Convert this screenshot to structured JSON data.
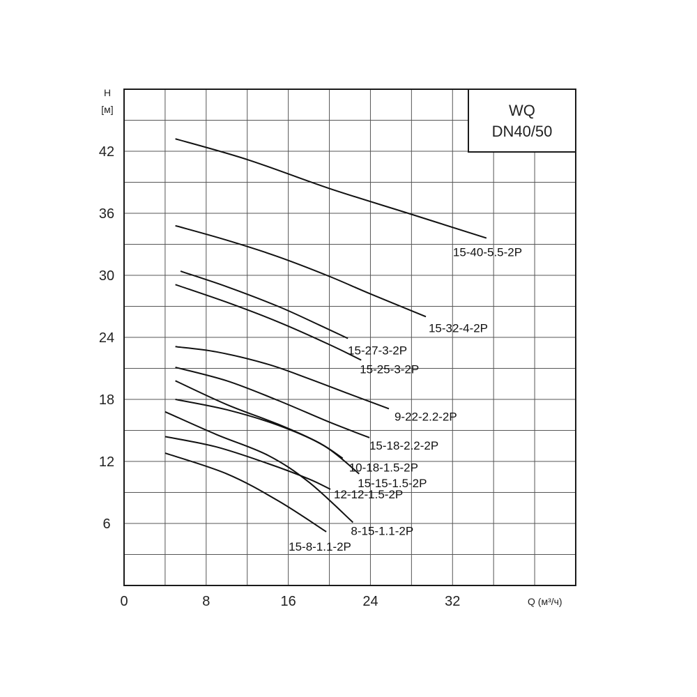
{
  "chart_data": {
    "type": "line",
    "title_lines": [
      "WQ",
      "DN40/50"
    ],
    "ylabel_lines": [
      "H",
      "[м]"
    ],
    "xlabel": "Q (м³/ч)",
    "xlim": [
      0,
      44
    ],
    "ylim": [
      0,
      48
    ],
    "x_ticks": [
      0,
      8,
      16,
      24,
      32
    ],
    "y_ticks": [
      6,
      12,
      18,
      24,
      30,
      36,
      42
    ],
    "x_grid": [
      0,
      4,
      8,
      12,
      16,
      20,
      24,
      28,
      32,
      36,
      40
    ],
    "y_grid": [
      3,
      6,
      9,
      12,
      15,
      18,
      21,
      24,
      27,
      30,
      33,
      36,
      39,
      42,
      45
    ],
    "grid": true,
    "series": [
      {
        "name": "15-40-5.5-2P",
        "points": [
          [
            5,
            43.2
          ],
          [
            12,
            41.2
          ],
          [
            20,
            38.4
          ],
          [
            28,
            35.9
          ],
          [
            35.3,
            33.6
          ]
        ]
      },
      {
        "name": "15-32-4-2P",
        "points": [
          [
            5,
            34.8
          ],
          [
            10,
            33.4
          ],
          [
            15,
            31.8
          ],
          [
            20,
            29.9
          ],
          [
            24,
            28.2
          ],
          [
            29.4,
            26
          ]
        ]
      },
      {
        "name": "15-27-3-2P",
        "points": [
          [
            5.5,
            30.4
          ],
          [
            10,
            28.9
          ],
          [
            15,
            27
          ],
          [
            19,
            25.2
          ],
          [
            21.8,
            23.9
          ]
        ]
      },
      {
        "name": "15-25-3-2P",
        "points": [
          [
            5,
            29.1
          ],
          [
            10,
            27.4
          ],
          [
            15,
            25.5
          ],
          [
            20,
            23.3
          ],
          [
            23.1,
            21.8
          ]
        ]
      },
      {
        "name": "9-22-2.2-2P",
        "points": [
          [
            5,
            23.1
          ],
          [
            9,
            22.6
          ],
          [
            14,
            21.4
          ],
          [
            18,
            20
          ],
          [
            22,
            18.5
          ],
          [
            25.8,
            17.1
          ]
        ]
      },
      {
        "name": "15-18-2.2-2P",
        "points": [
          [
            5,
            21.1
          ],
          [
            10,
            19.8
          ],
          [
            15,
            17.9
          ],
          [
            20,
            15.8
          ],
          [
            23.9,
            14.3
          ]
        ]
      },
      {
        "name": "10-18-1.5-2P",
        "points": [
          [
            5,
            19.8
          ],
          [
            10,
            17.5
          ],
          [
            15,
            15.6
          ],
          [
            19,
            13.8
          ],
          [
            21.3,
            12.3
          ]
        ]
      },
      {
        "name": "15-15-1.5-2P",
        "points": [
          [
            5,
            18
          ],
          [
            10,
            17
          ],
          [
            15,
            15.5
          ],
          [
            19.5,
            13.5
          ],
          [
            22.9,
            10.8
          ]
        ]
      },
      {
        "name": "12-12-1.5-2P",
        "points": [
          [
            4,
            14.4
          ],
          [
            9,
            13.4
          ],
          [
            14,
            11.8
          ],
          [
            18,
            10.3
          ],
          [
            20.1,
            9.3
          ]
        ]
      },
      {
        "name": "8-15-1.1-2P",
        "points": [
          [
            4,
            16.8
          ],
          [
            9,
            14.6
          ],
          [
            14,
            12.6
          ],
          [
            18,
            10
          ],
          [
            22.3,
            6.1
          ]
        ]
      },
      {
        "name": "15-8-1.1-2P",
        "points": [
          [
            4,
            12.8
          ],
          [
            10,
            10.8
          ],
          [
            15,
            8.2
          ],
          [
            19.7,
            5.2
          ]
        ]
      }
    ]
  }
}
